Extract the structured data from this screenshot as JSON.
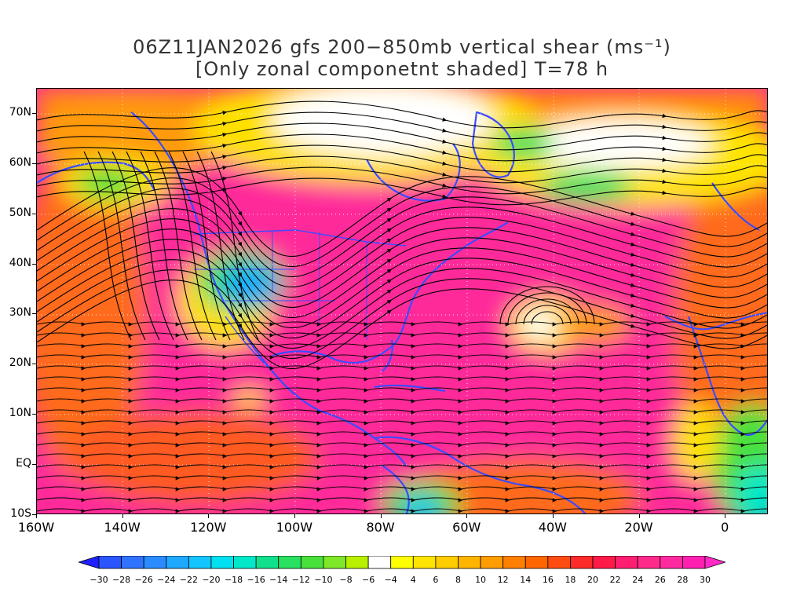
{
  "title": {
    "line1": "06Z11JAN2026 gfs 200−850mb vertical shear (ms⁻¹)",
    "line2": "[Only zonal componetnt shaded] T=78 h"
  },
  "axes": {
    "lat_labels": [
      "70N",
      "60N",
      "50N",
      "40N",
      "30N",
      "20N",
      "10N",
      "EQ",
      "10S"
    ],
    "lat_values": [
      70,
      60,
      50,
      40,
      30,
      20,
      10,
      0,
      -10
    ],
    "lon_labels": [
      "160W",
      "140W",
      "120W",
      "100W",
      "80W",
      "60W",
      "40W",
      "20W",
      "0"
    ],
    "lon_values": [
      -160,
      -140,
      -120,
      -100,
      -80,
      -60,
      -40,
      -20,
      0
    ],
    "lat_range": [
      -10,
      75
    ],
    "lon_range": [
      -160,
      10
    ]
  },
  "colorbar": {
    "labels": [
      "−30",
      "−28",
      "−26",
      "−24",
      "−22",
      "−20",
      "−18",
      "−16",
      "−14",
      "−12",
      "−10",
      "−8",
      "−6",
      "−4",
      "4",
      "6",
      "8",
      "10",
      "12",
      "14",
      "16",
      "18",
      "20",
      "22",
      "24",
      "26",
      "28",
      "30"
    ],
    "colors": [
      "#1f1fff",
      "#2b55ff",
      "#2f73ff",
      "#2a8cff",
      "#1fa8ff",
      "#14c4ff",
      "#00e0f0",
      "#00e8c8",
      "#10e08c",
      "#29e060",
      "#4ae03c",
      "#7ee828",
      "#b8f000",
      "#ffffff",
      "#ffff00",
      "#ffe400",
      "#ffcc00",
      "#ffb400",
      "#ff9c00",
      "#ff8000",
      "#ff6600",
      "#ff4c10",
      "#ff2a2a",
      "#ff1a48",
      "#ff1f70",
      "#ff2a8c",
      "#ff2aa0",
      "#ff1fb0",
      "#ff2ac8"
    ]
  }
}
